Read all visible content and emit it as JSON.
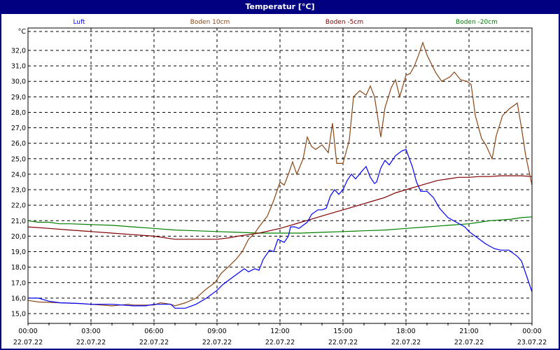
{
  "window": {
    "title": "Temperatur [°C]"
  },
  "colors": {
    "frame": "#000080",
    "grid": "#000000",
    "background": "#ffffff"
  },
  "legend": [
    {
      "label": "Luft",
      "color": "#0000ff"
    },
    {
      "label": "Boden 10cm",
      "color": "#8b4513"
    },
    {
      "label": "Boden -5cm",
      "color": "#800000"
    },
    {
      "label": "Boden -20cm",
      "color": "#008000"
    }
  ],
  "chart_data": {
    "type": "line",
    "title": "Temperatur [°C]",
    "xlabel": "",
    "ylabel": "°C",
    "ylim": [
      14.5,
      33.0
    ],
    "xlim_hours": [
      0,
      24
    ],
    "grid": true,
    "legend_position": "top",
    "yticks": [
      "15,0",
      "16,0",
      "17,0",
      "18,0",
      "19,0",
      "20,0",
      "21,0",
      "22,0",
      "23,0",
      "24,0",
      "25,0",
      "26,0",
      "27,0",
      "28,0",
      "29,0",
      "30,0",
      "31,0",
      "32,0"
    ],
    "xticks": [
      {
        "time": "00:00",
        "date": "22.07.22"
      },
      {
        "time": "03:00",
        "date": "22.07.22"
      },
      {
        "time": "06:00",
        "date": "22.07.22"
      },
      {
        "time": "09:00",
        "date": "22.07.22"
      },
      {
        "time": "12:00",
        "date": "22.07.22"
      },
      {
        "time": "15:00",
        "date": "22.07.22"
      },
      {
        "time": "18:00",
        "date": "22.07.22"
      },
      {
        "time": "21:00",
        "date": "22.07.22"
      },
      {
        "time": "00:00",
        "date": "23.07.22"
      }
    ],
    "series": [
      {
        "name": "Luft",
        "color": "#0000ff",
        "points": [
          [
            0,
            16.0
          ],
          [
            0.5,
            16.0
          ],
          [
            1,
            15.8
          ],
          [
            1.5,
            15.7
          ],
          [
            2.5,
            15.65
          ],
          [
            3,
            15.6
          ],
          [
            4,
            15.6
          ],
          [
            5,
            15.5
          ],
          [
            5.6,
            15.5
          ],
          [
            6,
            15.6
          ],
          [
            6.8,
            15.6
          ],
          [
            7,
            15.35
          ],
          [
            7.5,
            15.35
          ],
          [
            8,
            15.6
          ],
          [
            8.5,
            16.0
          ],
          [
            9,
            16.5
          ],
          [
            9.3,
            16.9
          ],
          [
            9.8,
            17.4
          ],
          [
            10,
            17.6
          ],
          [
            10.3,
            17.9
          ],
          [
            10.5,
            17.7
          ],
          [
            10.8,
            17.9
          ],
          [
            11,
            17.8
          ],
          [
            11.2,
            18.5
          ],
          [
            11.5,
            19.1
          ],
          [
            11.7,
            19.0
          ],
          [
            11.9,
            19.8
          ],
          [
            12.2,
            19.6
          ],
          [
            12.4,
            20.0
          ],
          [
            12.5,
            20.6
          ],
          [
            12.7,
            20.6
          ],
          [
            12.9,
            20.5
          ],
          [
            13.1,
            20.7
          ],
          [
            13.3,
            20.9
          ],
          [
            13.5,
            21.4
          ],
          [
            13.8,
            21.7
          ],
          [
            14,
            21.7
          ],
          [
            14.2,
            21.8
          ],
          [
            14.4,
            22.6
          ],
          [
            14.6,
            23.0
          ],
          [
            14.8,
            22.7
          ],
          [
            15,
            23.0
          ],
          [
            15.2,
            23.6
          ],
          [
            15.4,
            24.0
          ],
          [
            15.6,
            23.7
          ],
          [
            15.9,
            24.2
          ],
          [
            16.1,
            24.5
          ],
          [
            16.3,
            23.8
          ],
          [
            16.5,
            23.4
          ],
          [
            16.6,
            23.5
          ],
          [
            16.8,
            24.4
          ],
          [
            17,
            24.9
          ],
          [
            17.2,
            24.6
          ],
          [
            17.5,
            25.2
          ],
          [
            17.8,
            25.5
          ],
          [
            18,
            25.6
          ],
          [
            18.3,
            24.5
          ],
          [
            18.5,
            23.5
          ],
          [
            18.7,
            22.9
          ],
          [
            19,
            22.9
          ],
          [
            19.3,
            22.5
          ],
          [
            19.6,
            21.8
          ],
          [
            20,
            21.2
          ],
          [
            20.4,
            20.9
          ],
          [
            20.8,
            20.6
          ],
          [
            21,
            20.3
          ],
          [
            21.4,
            19.9
          ],
          [
            21.8,
            19.5
          ],
          [
            22.2,
            19.2
          ],
          [
            22.5,
            19.1
          ],
          [
            22.9,
            19.1
          ],
          [
            23.3,
            18.7
          ],
          [
            23.5,
            18.4
          ],
          [
            23.7,
            17.6
          ],
          [
            24,
            16.4
          ]
        ]
      },
      {
        "name": "Boden 10cm",
        "color": "#8b4513",
        "points": [
          [
            0,
            15.85
          ],
          [
            0.5,
            15.75
          ],
          [
            1.5,
            15.7
          ],
          [
            2.5,
            15.65
          ],
          [
            3,
            15.6
          ],
          [
            4,
            15.5
          ],
          [
            4.8,
            15.6
          ],
          [
            5,
            15.55
          ],
          [
            6,
            15.55
          ],
          [
            6.3,
            15.7
          ],
          [
            6.8,
            15.6
          ],
          [
            7,
            15.5
          ],
          [
            7.5,
            15.7
          ],
          [
            8,
            16.0
          ],
          [
            8.5,
            16.6
          ],
          [
            8.9,
            17.0
          ],
          [
            9.2,
            17.6
          ],
          [
            9.6,
            18.1
          ],
          [
            9.9,
            18.5
          ],
          [
            10.2,
            19.0
          ],
          [
            10.5,
            19.8
          ],
          [
            10.8,
            20.2
          ],
          [
            11,
            20.6
          ],
          [
            11.4,
            21.3
          ],
          [
            11.7,
            22.3
          ],
          [
            12,
            23.5
          ],
          [
            12.2,
            23.3
          ],
          [
            12.4,
            24.0
          ],
          [
            12.6,
            24.8
          ],
          [
            12.8,
            24.0
          ],
          [
            13.1,
            25.0
          ],
          [
            13.3,
            26.4
          ],
          [
            13.5,
            25.8
          ],
          [
            13.7,
            25.6
          ],
          [
            14,
            25.9
          ],
          [
            14.3,
            25.4
          ],
          [
            14.5,
            27.3
          ],
          [
            14.7,
            24.7
          ],
          [
            15,
            24.7
          ],
          [
            15.3,
            26.2
          ],
          [
            15.5,
            29.0
          ],
          [
            15.8,
            29.4
          ],
          [
            16.1,
            29.1
          ],
          [
            16.3,
            29.7
          ],
          [
            16.5,
            29.0
          ],
          [
            16.8,
            26.4
          ],
          [
            17,
            28.3
          ],
          [
            17.3,
            29.6
          ],
          [
            17.5,
            30.1
          ],
          [
            17.7,
            29.0
          ],
          [
            18.0,
            30.4
          ],
          [
            18.2,
            30.5
          ],
          [
            18.4,
            31.0
          ],
          [
            18.6,
            31.7
          ],
          [
            18.8,
            32.5
          ],
          [
            19,
            31.7
          ],
          [
            19.4,
            30.6
          ],
          [
            19.7,
            30.0
          ],
          [
            20.1,
            30.3
          ],
          [
            20.3,
            30.6
          ],
          [
            20.6,
            30.1
          ],
          [
            20.9,
            30.0
          ],
          [
            21.1,
            29.8
          ],
          [
            21.3,
            27.8
          ],
          [
            21.6,
            26.3
          ],
          [
            21.8,
            25.9
          ],
          [
            22.1,
            25.0
          ],
          [
            22.3,
            26.5
          ],
          [
            22.6,
            27.8
          ],
          [
            22.9,
            28.2
          ],
          [
            23.2,
            28.5
          ],
          [
            23.3,
            28.6
          ],
          [
            23.5,
            27.0
          ],
          [
            23.7,
            25.2
          ],
          [
            24,
            23.3
          ]
        ]
      },
      {
        "name": "Boden -5cm",
        "color": "#800000",
        "points": [
          [
            0,
            20.6
          ],
          [
            1,
            20.5
          ],
          [
            2,
            20.4
          ],
          [
            3,
            20.3
          ],
          [
            4,
            20.2
          ],
          [
            5,
            20.1
          ],
          [
            6,
            20.0
          ],
          [
            7,
            19.8
          ],
          [
            8,
            19.8
          ],
          [
            9,
            19.8
          ],
          [
            9.6,
            19.9
          ],
          [
            10,
            20.0
          ],
          [
            10.5,
            20.1
          ],
          [
            11,
            20.2
          ],
          [
            11.5,
            20.35
          ],
          [
            12,
            20.5
          ],
          [
            12.5,
            20.7
          ],
          [
            13,
            20.9
          ],
          [
            13.5,
            21.1
          ],
          [
            14,
            21.3
          ],
          [
            14.5,
            21.5
          ],
          [
            15,
            21.7
          ],
          [
            15.5,
            21.9
          ],
          [
            16,
            22.1
          ],
          [
            16.5,
            22.3
          ],
          [
            17,
            22.5
          ],
          [
            17.5,
            22.8
          ],
          [
            18,
            23.0
          ],
          [
            18.5,
            23.2
          ],
          [
            19,
            23.4
          ],
          [
            19.5,
            23.6
          ],
          [
            20,
            23.7
          ],
          [
            20.5,
            23.8
          ],
          [
            21,
            23.8
          ],
          [
            21.5,
            23.85
          ],
          [
            22,
            23.85
          ],
          [
            22.5,
            23.9
          ],
          [
            23,
            23.9
          ],
          [
            23.5,
            23.9
          ],
          [
            24,
            23.85
          ]
        ]
      },
      {
        "name": "Boden -20cm",
        "color": "#008000",
        "points": [
          [
            0,
            21.0
          ],
          [
            0.5,
            20.9
          ],
          [
            1,
            20.9
          ],
          [
            1.5,
            20.8
          ],
          [
            2,
            20.8
          ],
          [
            3,
            20.75
          ],
          [
            4,
            20.7
          ],
          [
            5,
            20.6
          ],
          [
            6,
            20.5
          ],
          [
            7,
            20.4
          ],
          [
            8,
            20.35
          ],
          [
            9,
            20.3
          ],
          [
            10,
            20.25
          ],
          [
            11,
            20.2
          ],
          [
            12,
            20.2
          ],
          [
            13,
            20.2
          ],
          [
            14,
            20.25
          ],
          [
            15,
            20.3
          ],
          [
            16,
            20.35
          ],
          [
            17,
            20.4
          ],
          [
            18,
            20.5
          ],
          [
            19,
            20.6
          ],
          [
            20,
            20.7
          ],
          [
            21,
            20.8
          ],
          [
            21.5,
            20.9
          ],
          [
            22,
            21.0
          ],
          [
            22.5,
            21.05
          ],
          [
            23,
            21.1
          ],
          [
            23.5,
            21.2
          ],
          [
            24,
            21.25
          ]
        ]
      }
    ]
  }
}
